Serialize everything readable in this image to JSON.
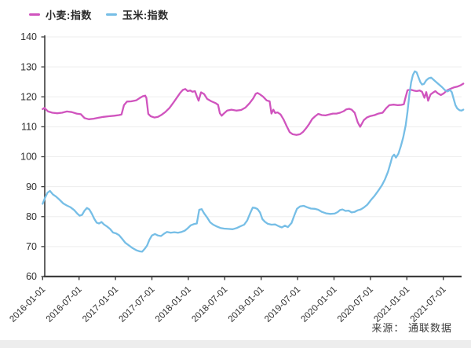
{
  "legend": {
    "items": [
      {
        "label": "小麦:指数",
        "color": "#d054be"
      },
      {
        "label": "玉米:指数",
        "color": "#76bee6"
      }
    ]
  },
  "source": {
    "label": "来源： 通联数据"
  },
  "chart_data": {
    "type": "line",
    "title": "",
    "xlabel": "",
    "ylabel": "",
    "x_unit": "months_since_2016-01-01",
    "grid": true,
    "legend_position": "top-left",
    "x_axis": {
      "tick_labels": [
        "2016-01-01",
        "2016-07-01",
        "2017-01-01",
        "2017-07-01",
        "2018-01-01",
        "2018-07-01",
        "2019-01-01",
        "2019-07-01",
        "2020-01-01",
        "2020-07-01",
        "2021-01-01",
        "2021-07-01"
      ],
      "tick_interval_months": 6
    },
    "y_axis": {
      "min": 60,
      "max": 140,
      "ticks": [
        60,
        70,
        80,
        90,
        100,
        110,
        120,
        130,
        140
      ]
    },
    "series": [
      {
        "name": "小麦:指数",
        "color": "#d054be",
        "points": [
          [
            0,
            115.9
          ],
          [
            0.3,
            116.3
          ],
          [
            0.9,
            115.1
          ],
          [
            1.6,
            114.7
          ],
          [
            2.4,
            114.5
          ],
          [
            3.2,
            114.7
          ],
          [
            4.0,
            115.1
          ],
          [
            4.8,
            114.9
          ],
          [
            5.6,
            114.4
          ],
          [
            6.3,
            114.2
          ],
          [
            6.9,
            112.9
          ],
          [
            7.6,
            112.5
          ],
          [
            8.4,
            112.7
          ],
          [
            9.2,
            113.0
          ],
          [
            10.0,
            113.3
          ],
          [
            10.9,
            113.5
          ],
          [
            11.8,
            113.7
          ],
          [
            12.6,
            113.9
          ],
          [
            13.0,
            114.1
          ],
          [
            13.4,
            117.2
          ],
          [
            13.9,
            118.4
          ],
          [
            14.6,
            118.5
          ],
          [
            15.4,
            118.8
          ],
          [
            16.0,
            119.6
          ],
          [
            16.5,
            120.2
          ],
          [
            16.9,
            120.4
          ],
          [
            17.1,
            119.6
          ],
          [
            17.4,
            114.3
          ],
          [
            17.8,
            113.5
          ],
          [
            18.4,
            113.1
          ],
          [
            19.0,
            113.3
          ],
          [
            19.6,
            114.0
          ],
          [
            20.2,
            114.9
          ],
          [
            20.9,
            116.3
          ],
          [
            21.6,
            118.2
          ],
          [
            22.2,
            120.0
          ],
          [
            22.7,
            121.4
          ],
          [
            23.1,
            122.3
          ],
          [
            23.5,
            122.6
          ],
          [
            23.9,
            121.9
          ],
          [
            24.3,
            122.1
          ],
          [
            24.7,
            121.7
          ],
          [
            25.1,
            121.9
          ],
          [
            25.4,
            120.2
          ],
          [
            25.7,
            118.7
          ],
          [
            26.1,
            121.5
          ],
          [
            26.6,
            120.9
          ],
          [
            27.1,
            119.3
          ],
          [
            27.8,
            118.5
          ],
          [
            28.5,
            117.9
          ],
          [
            28.9,
            117.3
          ],
          [
            29.2,
            114.5
          ],
          [
            29.5,
            113.7
          ],
          [
            29.9,
            114.5
          ],
          [
            30.4,
            115.4
          ],
          [
            31.1,
            115.7
          ],
          [
            31.9,
            115.4
          ],
          [
            32.7,
            115.6
          ],
          [
            33.4,
            116.4
          ],
          [
            34.1,
            117.9
          ],
          [
            34.7,
            119.5
          ],
          [
            35.1,
            121.0
          ],
          [
            35.4,
            121.3
          ],
          [
            35.8,
            120.8
          ],
          [
            36.3,
            120.1
          ],
          [
            36.9,
            118.8
          ],
          [
            37.4,
            118.5
          ],
          [
            37.7,
            114.4
          ],
          [
            38.0,
            115.7
          ],
          [
            38.3,
            114.6
          ],
          [
            38.7,
            114.8
          ],
          [
            39.2,
            114.1
          ],
          [
            39.7,
            112.4
          ],
          [
            40.2,
            110.2
          ],
          [
            40.7,
            108.2
          ],
          [
            41.2,
            107.5
          ],
          [
            41.8,
            107.3
          ],
          [
            42.4,
            107.5
          ],
          [
            42.9,
            108.3
          ],
          [
            43.4,
            109.5
          ],
          [
            43.9,
            110.9
          ],
          [
            44.4,
            112.6
          ],
          [
            44.9,
            113.5
          ],
          [
            45.4,
            114.3
          ],
          [
            46.0,
            113.9
          ],
          [
            46.6,
            113.8
          ],
          [
            47.2,
            114.1
          ],
          [
            47.8,
            114.4
          ],
          [
            48.4,
            114.4
          ],
          [
            49.0,
            114.7
          ],
          [
            49.6,
            115.2
          ],
          [
            50.0,
            115.8
          ],
          [
            50.5,
            116.0
          ],
          [
            50.9,
            115.7
          ],
          [
            51.4,
            114.7
          ],
          [
            51.9,
            111.5
          ],
          [
            52.3,
            110.0
          ],
          [
            52.9,
            112.2
          ],
          [
            53.4,
            113.1
          ],
          [
            54.0,
            113.6
          ],
          [
            54.7,
            113.9
          ],
          [
            55.3,
            114.4
          ],
          [
            56.0,
            114.7
          ],
          [
            56.6,
            116.2
          ],
          [
            57.1,
            117.2
          ],
          [
            57.8,
            117.4
          ],
          [
            58.5,
            117.2
          ],
          [
            59.1,
            117.3
          ],
          [
            59.5,
            117.5
          ],
          [
            59.8,
            120.0
          ],
          [
            60.1,
            122.2
          ],
          [
            60.6,
            122.4
          ],
          [
            61.1,
            122.1
          ],
          [
            61.6,
            121.9
          ],
          [
            62.1,
            122.1
          ],
          [
            62.5,
            121.7
          ],
          [
            62.9,
            119.7
          ],
          [
            63.2,
            121.6
          ],
          [
            63.5,
            118.7
          ],
          [
            63.9,
            120.8
          ],
          [
            64.3,
            121.4
          ],
          [
            64.7,
            121.9
          ],
          [
            65.1,
            121.2
          ],
          [
            65.6,
            120.6
          ],
          [
            66.1,
            121.2
          ],
          [
            66.6,
            122.1
          ],
          [
            67.1,
            122.6
          ],
          [
            67.7,
            123.1
          ],
          [
            68.3,
            123.4
          ],
          [
            68.9,
            123.9
          ],
          [
            69.3,
            124.4
          ]
        ]
      },
      {
        "name": "玉米:指数",
        "color": "#76bee6",
        "points": [
          [
            0,
            84.3
          ],
          [
            0.4,
            86.3
          ],
          [
            0.8,
            88.0
          ],
          [
            1.2,
            88.6
          ],
          [
            1.7,
            87.4
          ],
          [
            2.2,
            86.7
          ],
          [
            2.8,
            85.6
          ],
          [
            3.4,
            84.4
          ],
          [
            4.0,
            83.7
          ],
          [
            4.6,
            83.1
          ],
          [
            5.2,
            82.2
          ],
          [
            5.7,
            81.0
          ],
          [
            6.1,
            80.3
          ],
          [
            6.5,
            80.6
          ],
          [
            6.9,
            82.0
          ],
          [
            7.3,
            82.9
          ],
          [
            7.7,
            82.4
          ],
          [
            8.1,
            81.0
          ],
          [
            8.5,
            79.3
          ],
          [
            8.9,
            78.0
          ],
          [
            9.3,
            77.7
          ],
          [
            9.7,
            78.2
          ],
          [
            10.1,
            77.4
          ],
          [
            10.6,
            76.7
          ],
          [
            11.1,
            75.9
          ],
          [
            11.6,
            74.7
          ],
          [
            12.1,
            74.4
          ],
          [
            12.6,
            73.8
          ],
          [
            13.1,
            72.6
          ],
          [
            13.6,
            71.3
          ],
          [
            14.2,
            70.4
          ],
          [
            14.8,
            69.5
          ],
          [
            15.4,
            68.8
          ],
          [
            16.0,
            68.4
          ],
          [
            16.4,
            68.3
          ],
          [
            16.8,
            69.2
          ],
          [
            17.2,
            70.3
          ],
          [
            17.6,
            72.3
          ],
          [
            18.0,
            73.7
          ],
          [
            18.5,
            74.2
          ],
          [
            19.0,
            73.7
          ],
          [
            19.5,
            73.5
          ],
          [
            20.0,
            74.3
          ],
          [
            20.5,
            74.9
          ],
          [
            21.1,
            74.6
          ],
          [
            21.7,
            74.8
          ],
          [
            22.3,
            74.6
          ],
          [
            22.9,
            74.9
          ],
          [
            23.4,
            75.3
          ],
          [
            23.9,
            76.1
          ],
          [
            24.4,
            77.1
          ],
          [
            24.9,
            77.5
          ],
          [
            25.4,
            77.7
          ],
          [
            25.8,
            82.3
          ],
          [
            26.2,
            82.5
          ],
          [
            26.6,
            81.1
          ],
          [
            27.1,
            79.7
          ],
          [
            27.6,
            78.1
          ],
          [
            28.1,
            77.3
          ],
          [
            28.7,
            76.7
          ],
          [
            29.3,
            76.2
          ],
          [
            29.9,
            76.0
          ],
          [
            30.6,
            75.9
          ],
          [
            31.3,
            75.8
          ],
          [
            32.0,
            76.2
          ],
          [
            32.6,
            76.8
          ],
          [
            33.2,
            77.3
          ],
          [
            33.7,
            78.7
          ],
          [
            34.2,
            81.2
          ],
          [
            34.6,
            83.0
          ],
          [
            35.0,
            82.9
          ],
          [
            35.4,
            82.5
          ],
          [
            35.8,
            81.4
          ],
          [
            36.2,
            79.2
          ],
          [
            36.6,
            78.3
          ],
          [
            37.1,
            77.6
          ],
          [
            37.7,
            77.3
          ],
          [
            38.3,
            77.4
          ],
          [
            38.9,
            76.8
          ],
          [
            39.4,
            76.4
          ],
          [
            39.9,
            77.0
          ],
          [
            40.4,
            76.5
          ],
          [
            41.0,
            77.9
          ],
          [
            41.5,
            80.6
          ],
          [
            41.9,
            82.6
          ],
          [
            42.4,
            83.4
          ],
          [
            43.0,
            83.6
          ],
          [
            43.6,
            83.1
          ],
          [
            44.2,
            82.7
          ],
          [
            44.8,
            82.6
          ],
          [
            45.4,
            82.3
          ],
          [
            46.0,
            81.6
          ],
          [
            46.7,
            81.1
          ],
          [
            47.4,
            80.9
          ],
          [
            48.1,
            81.0
          ],
          [
            48.6,
            81.5
          ],
          [
            49.0,
            82.2
          ],
          [
            49.4,
            82.4
          ],
          [
            49.9,
            81.9
          ],
          [
            50.4,
            82.0
          ],
          [
            50.9,
            81.4
          ],
          [
            51.4,
            81.6
          ],
          [
            51.9,
            82.1
          ],
          [
            52.4,
            82.4
          ],
          [
            52.9,
            83.0
          ],
          [
            53.5,
            84.0
          ],
          [
            54.1,
            85.6
          ],
          [
            54.7,
            87.0
          ],
          [
            55.3,
            88.7
          ],
          [
            55.9,
            90.5
          ],
          [
            56.4,
            92.5
          ],
          [
            56.9,
            95.0
          ],
          [
            57.3,
            97.8
          ],
          [
            57.6,
            100.0
          ],
          [
            57.9,
            100.7
          ],
          [
            58.2,
            99.7
          ],
          [
            58.6,
            101.0
          ],
          [
            59.0,
            103.5
          ],
          [
            59.4,
            106.5
          ],
          [
            59.8,
            110.5
          ],
          [
            60.1,
            115.0
          ],
          [
            60.4,
            120.5
          ],
          [
            60.7,
            124.8
          ],
          [
            61.0,
            127.3
          ],
          [
            61.3,
            128.5
          ],
          [
            61.6,
            128.2
          ],
          [
            61.9,
            126.6
          ],
          [
            62.2,
            125.0
          ],
          [
            62.5,
            124.1
          ],
          [
            62.8,
            124.3
          ],
          [
            63.2,
            125.5
          ],
          [
            63.6,
            126.2
          ],
          [
            64.0,
            126.4
          ],
          [
            64.4,
            125.7
          ],
          [
            64.8,
            125.0
          ],
          [
            65.3,
            124.1
          ],
          [
            65.8,
            123.2
          ],
          [
            66.3,
            122.2
          ],
          [
            66.7,
            121.8
          ],
          [
            67.1,
            122.3
          ],
          [
            67.4,
            121.6
          ],
          [
            67.7,
            119.4
          ],
          [
            68.0,
            117.2
          ],
          [
            68.3,
            116.1
          ],
          [
            68.7,
            115.5
          ],
          [
            69.0,
            115.4
          ],
          [
            69.3,
            115.7
          ]
        ]
      }
    ]
  }
}
